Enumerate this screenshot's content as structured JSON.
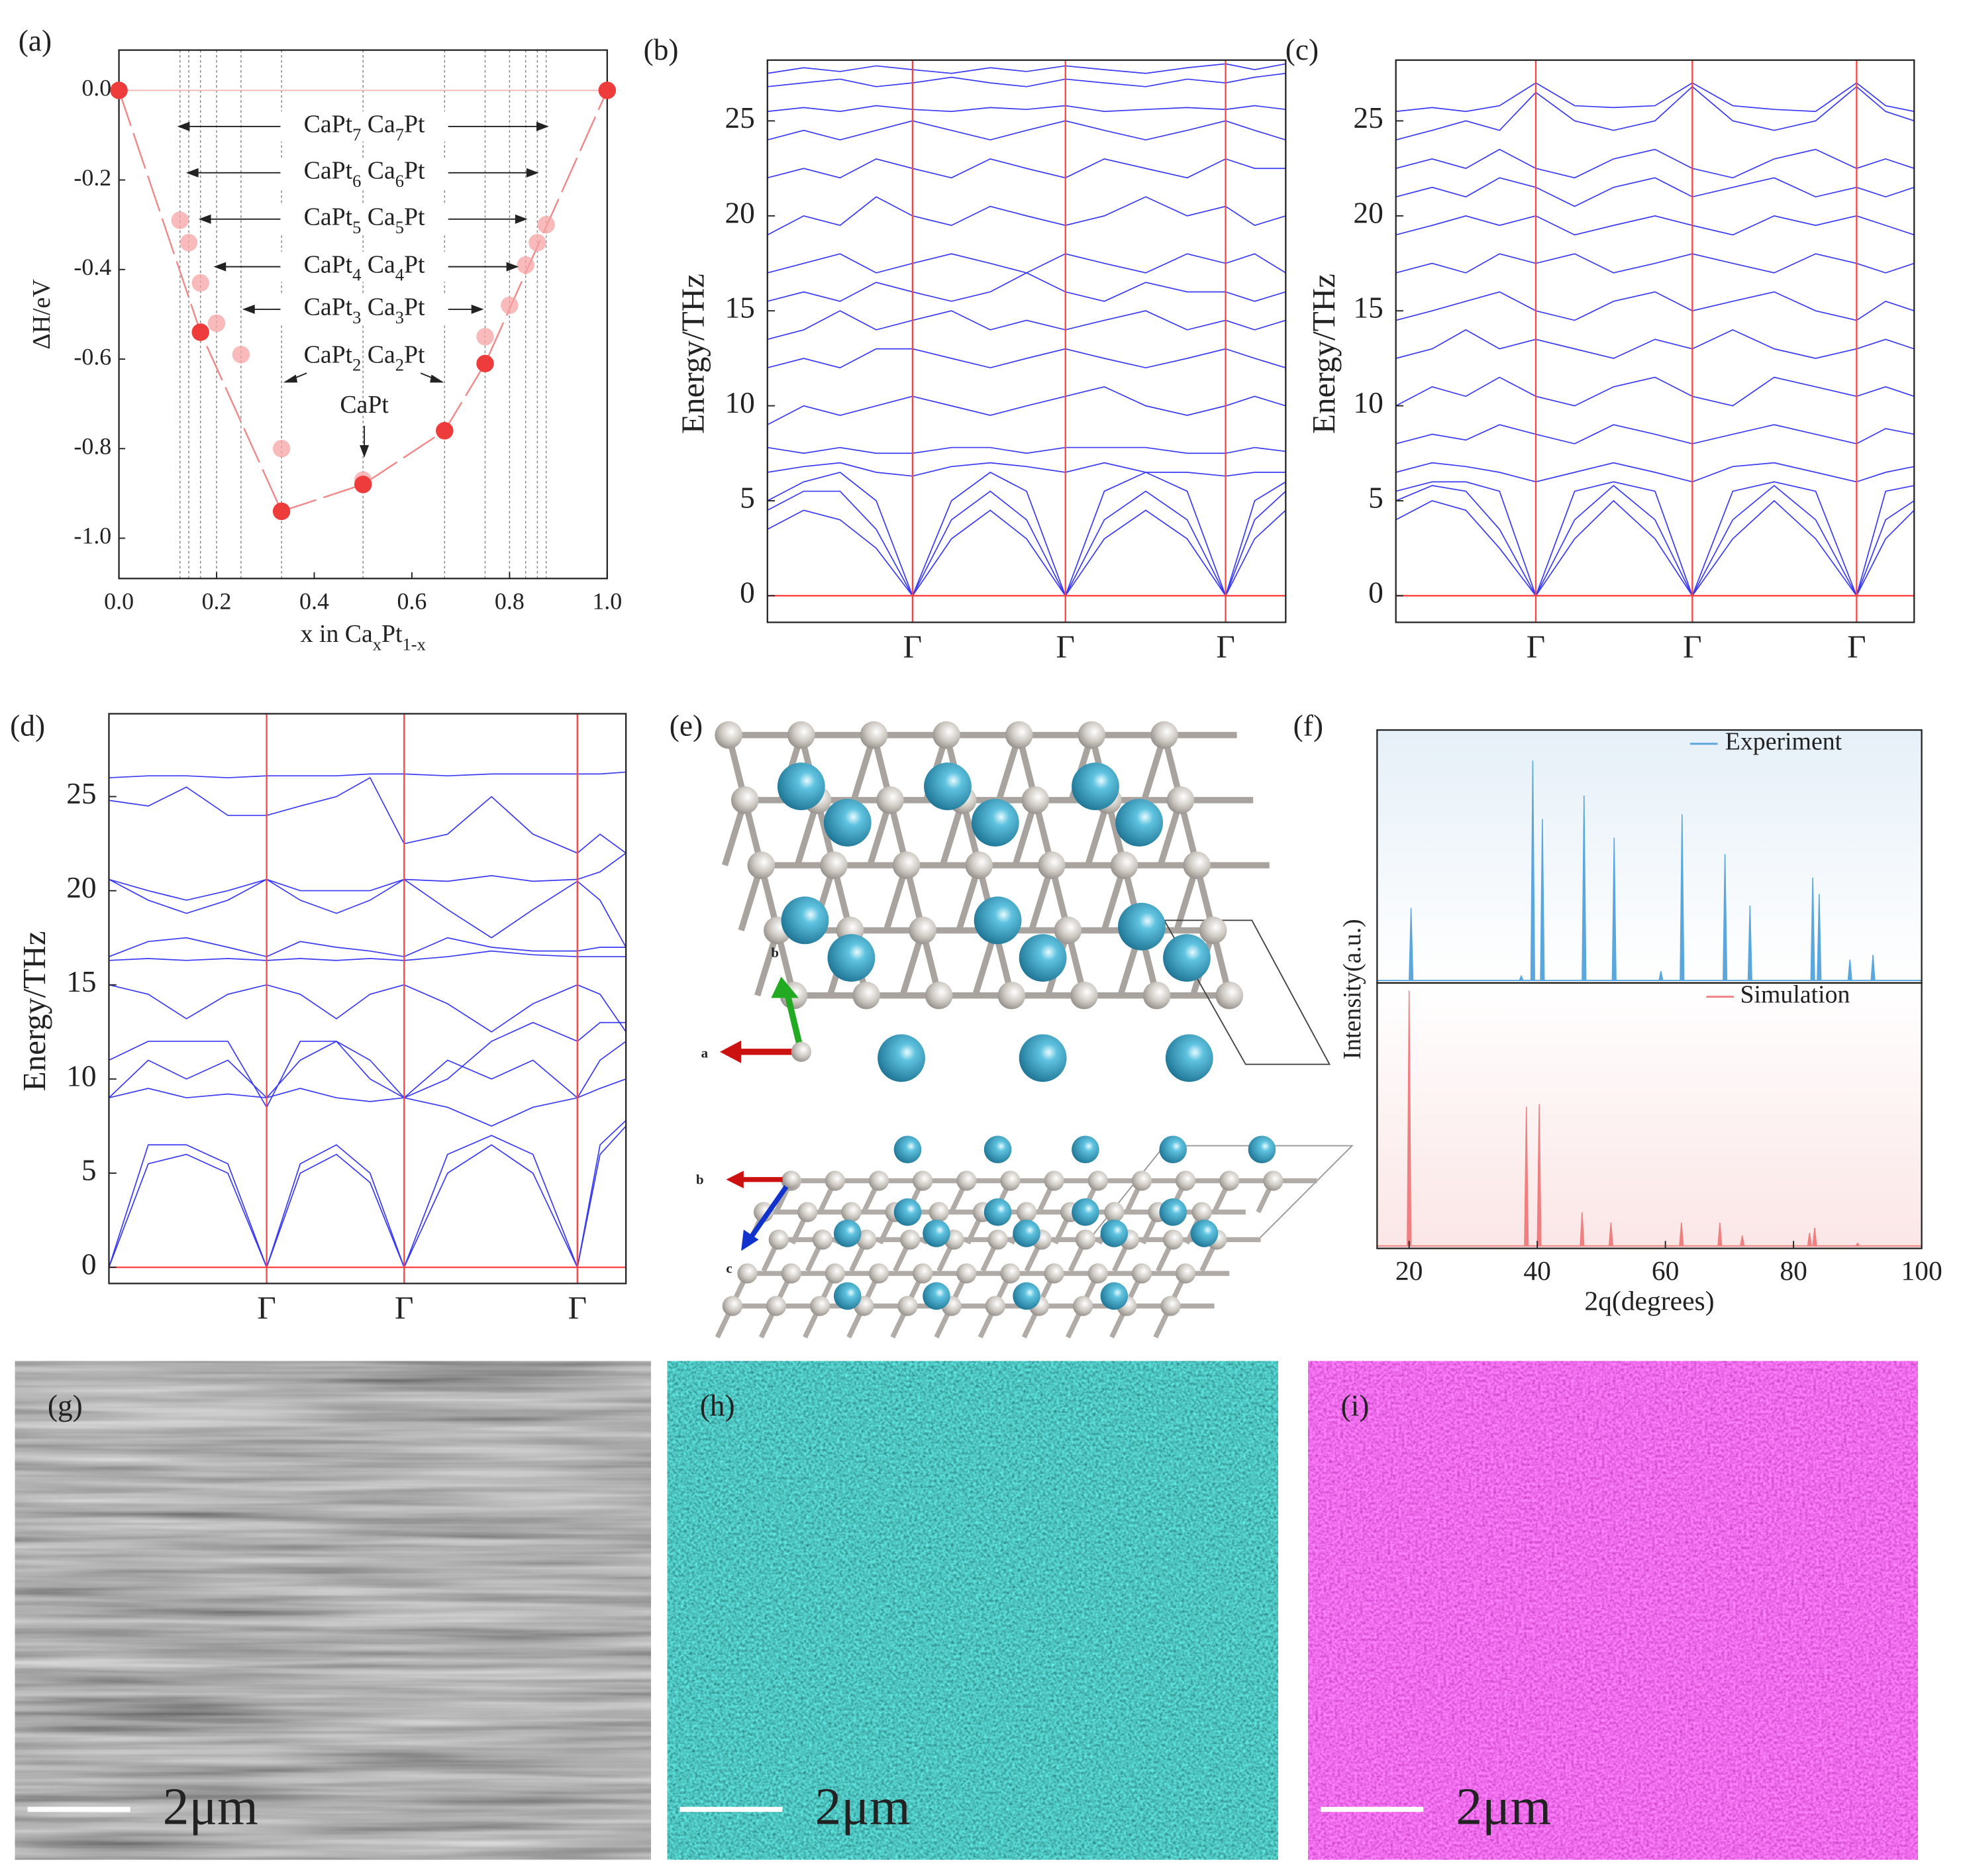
{
  "chart_data": [
    {
      "type": "scatter",
      "label": "(a)",
      "xlabel": "x in CaxPt1-x",
      "ylabel": "ΔH/eV",
      "xlim": [
        0,
        1
      ],
      "ylim": [
        -1.09,
        0.09
      ],
      "xticks": [
        {
          "value": 0,
          "label": "0.0"
        },
        0.2,
        0.4,
        0.6,
        0.8,
        {
          "value": 1,
          "label": "1.0"
        }
      ],
      "yticks": [
        {
          "value": 0,
          "label": "0.0"
        },
        -0.2,
        -0.4,
        -0.6,
        -0.8,
        {
          "value": -1,
          "label": "-1.0"
        }
      ],
      "vlines": [
        0.125,
        0.143,
        0.167,
        0.2,
        0.25,
        0.333,
        0.5,
        0.667,
        0.75,
        0.8,
        0.833,
        0.857,
        0.875
      ],
      "annotations": [
        "CaPt7 Ca7Pt",
        "CaPt6 Ca6Pt",
        "CaPt5 Ca5Pt",
        "CaPt4 Ca4Pt",
        "CaPt3 Ca3Pt",
        "CaPt2 Ca2Pt",
        "CaPt"
      ],
      "series": [
        {
          "color": "#ee3b3b",
          "x": [
            0,
            0.167,
            0.333,
            0.5,
            0.667,
            0.75,
            1
          ],
          "values": [
            0,
            -0.54,
            -0.94,
            -0.88,
            -0.76,
            -0.61,
            0
          ]
        },
        {
          "color": "#f5a3a3",
          "x": [
            0.125,
            0.143,
            0.167,
            0.2,
            0.25,
            0.333,
            0.5,
            0.75,
            0.8,
            0.833,
            0.857,
            0.875
          ],
          "values": [
            -0.29,
            -0.34,
            -0.43,
            -0.52,
            -0.59,
            -0.8,
            -0.87,
            -0.55,
            -0.48,
            -0.39,
            -0.34,
            -0.3
          ]
        }
      ]
    },
    {
      "type": "bands",
      "label": "(b)",
      "ylabel": "Energy/THz",
      "color": "#3a3af5",
      "line_color": "#ff4040",
      "zero_line": true,
      "xlim": [
        0,
        1
      ],
      "ylim": [
        -1.4,
        28.2
      ],
      "yticks": [
        0,
        5,
        10,
        15,
        20,
        25
      ],
      "xticks": [
        {
          "value": 0.28,
          "label": "Γ"
        },
        {
          "value": 0.575,
          "label": "Γ"
        },
        {
          "value": 0.884,
          "label": "Γ"
        }
      ],
      "x": [
        0,
        0.07,
        0.14,
        0.21,
        0.28,
        0.355,
        0.43,
        0.5,
        0.575,
        0.65,
        0.73,
        0.81,
        0.884,
        0.94,
        1
      ],
      "series": [
        {
          "values": [
            3.5,
            4.5,
            4,
            2.5,
            0,
            3,
            4.5,
            3,
            0,
            3,
            4.5,
            3,
            0,
            3,
            4.5
          ]
        },
        {
          "values": [
            4.5,
            5.5,
            5.5,
            3.5,
            0,
            4,
            5.5,
            4,
            0,
            4,
            5.5,
            4,
            0,
            4,
            5.5
          ]
        },
        {
          "values": [
            5,
            6,
            6.5,
            5,
            0,
            5,
            6.5,
            5.5,
            0,
            5.5,
            6.5,
            5.5,
            0,
            5,
            6
          ]
        },
        {
          "values": [
            6.5,
            6.8,
            7,
            6.5,
            6.3,
            6.8,
            7,
            6.8,
            6.5,
            7,
            6.5,
            6.5,
            6.3,
            6.5,
            6.5
          ]
        },
        {
          "values": [
            7.8,
            7.5,
            7.8,
            7.5,
            7.5,
            7.8,
            7.8,
            7.5,
            7.8,
            7.8,
            7.8,
            7.5,
            7.5,
            7.8,
            7.6
          ]
        },
        {
          "values": [
            9,
            10,
            9.5,
            10,
            10.5,
            10,
            9.5,
            10,
            10.5,
            11,
            10,
            9.5,
            10,
            10.5,
            10
          ]
        },
        {
          "values": [
            12,
            12.5,
            12,
            13,
            13,
            12.5,
            12,
            12.5,
            13,
            12.5,
            12,
            12.5,
            13,
            12.5,
            12
          ]
        },
        {
          "values": [
            13.5,
            14,
            15,
            14,
            14.5,
            15,
            14,
            14.5,
            14,
            14.5,
            15,
            14,
            14.5,
            14,
            14.5
          ]
        },
        {
          "values": [
            15.5,
            16,
            15.5,
            16.5,
            16,
            15.5,
            16,
            17,
            16,
            15.5,
            16.5,
            16,
            16,
            15.5,
            16
          ]
        },
        {
          "values": [
            17,
            17.5,
            18,
            17,
            17.5,
            18,
            17.5,
            17,
            18,
            17.5,
            17,
            18,
            17.5,
            18,
            17
          ]
        },
        {
          "values": [
            19,
            20,
            19.5,
            21,
            20,
            19.5,
            20.5,
            20,
            19.5,
            20,
            21,
            20,
            20.5,
            19.5,
            20
          ]
        },
        {
          "values": [
            22,
            22.5,
            22,
            23,
            22.5,
            22,
            23,
            22.5,
            22,
            23,
            22.5,
            22,
            23,
            22.5,
            22.5
          ]
        },
        {
          "values": [
            24,
            24.5,
            24,
            24.5,
            25,
            24.5,
            24,
            24.5,
            25,
            24.5,
            24,
            24.5,
            25,
            24.5,
            24
          ]
        },
        {
          "values": [
            25.5,
            25.7,
            25.5,
            25.8,
            25.6,
            25.5,
            25.7,
            25.6,
            25.8,
            25.5,
            25.6,
            25.7,
            25.6,
            25.8,
            25.6
          ]
        },
        {
          "values": [
            26.8,
            27,
            27.2,
            26.8,
            27,
            27.3,
            27,
            26.8,
            27.2,
            27,
            26.8,
            27.2,
            27,
            27.3,
            27.5
          ]
        },
        {
          "values": [
            27.5,
            27.8,
            27.6,
            27.9,
            27.7,
            27.5,
            27.8,
            27.6,
            27.9,
            27.7,
            27.5,
            27.8,
            28,
            27.7,
            28
          ]
        }
      ]
    },
    {
      "type": "bands",
      "label": "(c)",
      "ylabel": "Energy/THz",
      "color": "#3a3af5",
      "line_color": "#ff4040",
      "zero_line": true,
      "xlim": [
        0,
        1
      ],
      "ylim": [
        -1.4,
        28.2
      ],
      "yticks": [
        0,
        5,
        10,
        15,
        20,
        25
      ],
      "xticks": [
        {
          "value": 0.27,
          "label": "Γ"
        },
        {
          "value": 0.572,
          "label": "Γ"
        },
        {
          "value": 0.889,
          "label": "Γ"
        }
      ],
      "x": [
        0,
        0.07,
        0.135,
        0.2,
        0.27,
        0.345,
        0.42,
        0.5,
        0.572,
        0.65,
        0.73,
        0.81,
        0.889,
        0.945,
        1
      ],
      "series": [
        {
          "values": [
            4,
            5,
            4.5,
            2.5,
            0,
            3,
            5,
            3,
            0,
            3,
            5,
            3,
            0,
            3,
            4.5
          ]
        },
        {
          "values": [
            5,
            5.8,
            5.5,
            3.5,
            0,
            4,
            5.8,
            4,
            0,
            4,
            5.8,
            4,
            0,
            4,
            5
          ]
        },
        {
          "values": [
            5.5,
            6,
            6,
            5.5,
            0,
            5.5,
            6,
            5.5,
            0,
            5.5,
            6,
            5.5,
            0,
            5.5,
            5.8
          ]
        },
        {
          "values": [
            6.5,
            7,
            6.8,
            6.5,
            6,
            6.5,
            7,
            6.5,
            6,
            6.8,
            7,
            6.5,
            6,
            6.5,
            6.8
          ]
        },
        {
          "values": [
            8,
            8.5,
            8.2,
            9,
            8.5,
            8,
            9,
            8.5,
            8,
            8.5,
            9,
            8.5,
            8,
            8.8,
            8.5
          ]
        },
        {
          "values": [
            10,
            11,
            10.5,
            11.5,
            10.5,
            10,
            11,
            11.5,
            10.5,
            10,
            11.5,
            11,
            10.5,
            11,
            10.5
          ]
        },
        {
          "values": [
            12.5,
            13,
            14,
            13,
            13.5,
            13,
            12.5,
            13.5,
            13,
            14,
            13,
            12.5,
            13,
            13.5,
            13
          ]
        },
        {
          "values": [
            14.5,
            15,
            15.5,
            16,
            15,
            14.5,
            15.5,
            16,
            15,
            15.5,
            16,
            15,
            14.5,
            15.5,
            15
          ]
        },
        {
          "values": [
            17,
            17.5,
            17,
            18,
            17.5,
            18,
            17,
            17.5,
            18,
            17.5,
            17,
            18,
            17.5,
            17,
            17.5
          ]
        },
        {
          "values": [
            19,
            19.5,
            20,
            19.5,
            20,
            19,
            19.5,
            20,
            19.5,
            19,
            20,
            19.5,
            20,
            19.5,
            19
          ]
        },
        {
          "values": [
            21,
            21.5,
            21,
            22,
            21.5,
            20.5,
            21.5,
            22,
            21,
            21.5,
            22,
            21,
            21.5,
            21,
            21.5
          ]
        },
        {
          "values": [
            22.5,
            23,
            22.5,
            23.5,
            22.5,
            22,
            23,
            23.5,
            22.5,
            22,
            23,
            23.5,
            22.5,
            23,
            22.5
          ]
        },
        {
          "values": [
            24,
            24.5,
            25,
            24.5,
            26.5,
            25,
            24.5,
            25,
            26.8,
            25,
            24.5,
            25,
            26.8,
            25.5,
            25
          ]
        },
        {
          "values": [
            25.5,
            25.7,
            25.5,
            25.8,
            27,
            25.8,
            25.7,
            25.8,
            27,
            25.8,
            25.6,
            25.5,
            27,
            25.8,
            25.5
          ]
        }
      ]
    },
    {
      "type": "bands",
      "label": "(d)",
      "ylabel": "Energy/THz",
      "color": "#3a3af5",
      "line_color": "#ff4040",
      "zero_line": true,
      "xlim": [
        0,
        1
      ],
      "ylim": [
        -0.86,
        29.4
      ],
      "yticks": [
        0,
        5,
        10,
        15,
        20,
        25
      ],
      "xticks": [
        {
          "value": 0.305,
          "label": "Γ"
        },
        {
          "value": 0.571,
          "label": "Γ"
        },
        {
          "value": 0.906,
          "label": "Γ"
        }
      ],
      "x": [
        0,
        0.076,
        0.15,
        0.23,
        0.305,
        0.37,
        0.44,
        0.505,
        0.571,
        0.655,
        0.74,
        0.82,
        0.906,
        0.95,
        1
      ],
      "series": [
        {
          "values": [
            0,
            5.5,
            6,
            5,
            0,
            5,
            6,
            4.5,
            0,
            5,
            6.5,
            5,
            0,
            6,
            7.5
          ]
        },
        {
          "values": [
            0,
            6.5,
            6.5,
            5.5,
            0,
            5.5,
            6.5,
            5,
            0,
            6,
            7,
            6,
            0,
            6.5,
            7.8
          ]
        },
        {
          "values": [
            9,
            11,
            10,
            11,
            9,
            11,
            12,
            11,
            9,
            11,
            10,
            11,
            9,
            11,
            12
          ]
        },
        {
          "values": [
            9,
            9.5,
            9,
            9.2,
            9,
            9.5,
            9,
            8.8,
            9,
            8.5,
            7.5,
            8.5,
            9,
            9.5,
            10
          ]
        },
        {
          "values": [
            11,
            12,
            12,
            12,
            8.5,
            12,
            12,
            10,
            9,
            10,
            12,
            13,
            12,
            13,
            13
          ]
        },
        {
          "values": [
            15,
            14.5,
            13.2,
            14.5,
            15,
            14.5,
            13.2,
            14.5,
            15,
            14,
            12.5,
            14,
            15,
            14.5,
            12.5
          ]
        },
        {
          "values": [
            16.3,
            16.4,
            16.3,
            16.4,
            16.3,
            16.4,
            16.3,
            16.4,
            16.3,
            16.5,
            16.8,
            16.6,
            16.5,
            16.5,
            16.5
          ]
        },
        {
          "values": [
            16.5,
            17.3,
            17.5,
            17,
            16.5,
            17.3,
            17,
            16.8,
            16.5,
            17.5,
            17,
            16.8,
            16.8,
            17,
            17
          ]
        },
        {
          "values": [
            20.6,
            19.5,
            18.8,
            19.5,
            20.6,
            19.5,
            18.8,
            19.5,
            20.6,
            19,
            17.5,
            19,
            20.5,
            19.5,
            17
          ]
        },
        {
          "values": [
            20.6,
            20,
            19.5,
            20,
            20.6,
            20,
            20,
            20,
            20.6,
            20.5,
            20.8,
            20.5,
            20.6,
            21,
            22
          ]
        },
        {
          "values": [
            24.8,
            24.5,
            25.5,
            24,
            24,
            24.5,
            25,
            26,
            22.5,
            23,
            25,
            23,
            22,
            23,
            22
          ]
        },
        {
          "values": [
            26,
            26.1,
            26.1,
            26,
            26.1,
            26.1,
            26.1,
            26.2,
            26.2,
            26.1,
            26.2,
            26.2,
            26.2,
            26.2,
            26.3
          ]
        }
      ]
    },
    {
      "type": "spectrum",
      "label": "(f)",
      "xlabel": "2q(degrees)",
      "ylabel": "Intensity(a.u.)",
      "xlim": [
        15,
        100
      ],
      "xticks": [
        20,
        40,
        60,
        80,
        100
      ],
      "series": [
        {
          "name": "Experiment",
          "color": "#5aa7de",
          "ylim": [
            0,
            1.08
          ],
          "x": [
            20.3,
            37.5,
            39.3,
            40.8,
            47.3,
            52,
            59.3,
            62.6,
            69.3,
            73.2,
            83,
            84,
            88.8,
            92.4
          ],
          "values": [
            0.32,
            0.03,
            0.95,
            0.7,
            0.8,
            0.62,
            0.05,
            0.72,
            0.55,
            0.33,
            0.45,
            0.38,
            0.1,
            0.12
          ]
        },
        {
          "name": "Simulation",
          "color": "#f08080",
          "ylim": [
            0,
            1.03
          ],
          "x": [
            20,
            32.5,
            38.3,
            40.3,
            47,
            51.5,
            62.5,
            68.5,
            72,
            82.5,
            83.3,
            90
          ],
          "values": [
            1,
            0.01,
            0.55,
            0.56,
            0.14,
            0.1,
            0.1,
            0.1,
            0.05,
            0.06,
            0.08,
            0.02
          ]
        }
      ]
    }
  ],
  "structure": {
    "label": "(e)",
    "top_axes": [
      "b",
      "a"
    ],
    "bottom_axes": [
      "b",
      "c"
    ]
  },
  "images": [
    {
      "label": "(g)",
      "scale_bar": "2μm"
    },
    {
      "label": "(h)",
      "scale_bar": "2μm"
    },
    {
      "label": "(i)",
      "scale_bar": "2μm"
    }
  ]
}
